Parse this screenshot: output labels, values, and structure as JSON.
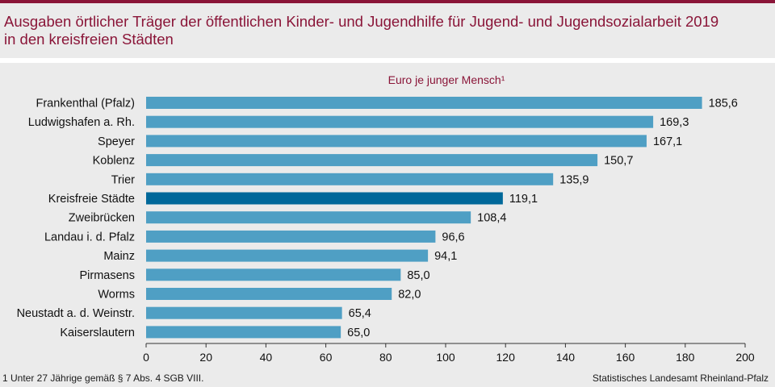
{
  "header": {
    "title_line1": "Ausgaben örtlicher Träger der öffentlichen Kinder- und Jugendhilfe für Jugend- und Jugendsozialarbeit 2019",
    "title_line2": "in den kreisfreien Städten"
  },
  "footer": {
    "footnote": "1 Unter 27 Jährige gemäß § 7 Abs. 4 SGB VIII.",
    "source": "Statistisches Landesamt Rheinland-Pfalz"
  },
  "colors": {
    "bar": "#4f9fc4",
    "bar_highlight": "#00689a",
    "accent": "#8a1538"
  },
  "chart_data": {
    "type": "bar",
    "orientation": "horizontal",
    "unit_label": "Euro je junger Mensch¹",
    "categories": [
      "Frankenthal (Pfalz)",
      "Ludwigshafen a. Rh.",
      "Speyer",
      "Koblenz",
      "Trier",
      "Kreisfreie Städte",
      "Zweibrücken",
      "Landau i. d. Pfalz",
      "Mainz",
      "Pirmasens",
      "Worms",
      "Neustadt a. d. Weinstr.",
      "Kaiserslautern"
    ],
    "values": [
      185.6,
      169.3,
      167.1,
      150.7,
      135.9,
      119.1,
      108.4,
      96.6,
      94.1,
      85.0,
      82.0,
      65.4,
      65.0
    ],
    "value_labels": [
      "185,6",
      "169,3",
      "167,1",
      "150,7",
      "135,9",
      "119,1",
      "108,4",
      "96,6",
      "94,1",
      "85,0",
      "82,0",
      "65,4",
      "65,0"
    ],
    "highlight": "Kreisfreie Städte",
    "xlim": [
      0,
      200
    ],
    "xticks": [
      0,
      20,
      40,
      60,
      80,
      100,
      120,
      140,
      160,
      180,
      200
    ],
    "grid": false
  }
}
